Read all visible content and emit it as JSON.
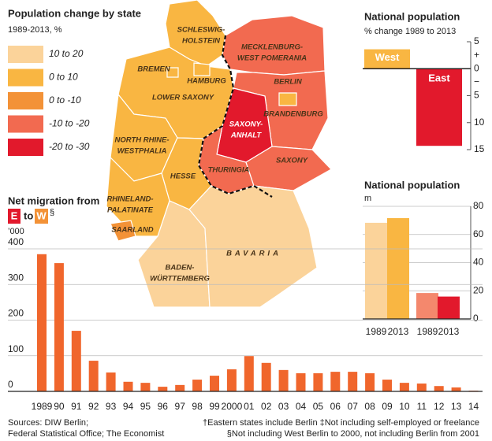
{
  "chart_data": [
    {
      "type": "map",
      "title": "Population change by state",
      "subtitle": "1989-2013, %",
      "legend": [
        {
          "label": "10 to 20",
          "color": "#fbd39a"
        },
        {
          "label": "0 to 10",
          "color": "#f9b642"
        },
        {
          "label": "0 to -10",
          "color": "#f39237"
        },
        {
          "label": "-10 to -20",
          "color": "#f26a50"
        },
        {
          "label": "-20 to -30",
          "color": "#e2192c"
        }
      ],
      "regions": [
        {
          "name": [
            "SCHLESWIG-",
            "HOLSTEIN"
          ],
          "color": "#f9b642"
        },
        {
          "name": [
            "MECKLENBURG-",
            "WEST POMERANIA"
          ],
          "color": "#f26a50"
        },
        {
          "name": [
            "LOWER SAXONY"
          ],
          "color": "#f9b642"
        },
        {
          "name": [
            "HAMBURG"
          ],
          "color": "#f9b642"
        },
        {
          "name": [
            "BREMEN"
          ],
          "color": "#f9b642"
        },
        {
          "name": [
            "BRANDENBURG"
          ],
          "color": "#f26a50"
        },
        {
          "name": [
            "BERLIN"
          ],
          "color": "#f9b642"
        },
        {
          "name": [
            "SAXONY-",
            "ANHALT"
          ],
          "color": "#e2192c"
        },
        {
          "name": [
            "NORTH RHINE-",
            "WESTPHALIA"
          ],
          "color": "#f9b642"
        },
        {
          "name": [
            "HESSE"
          ],
          "color": "#f9b642"
        },
        {
          "name": [
            "THURINGIA"
          ],
          "color": "#f26a50"
        },
        {
          "name": [
            "SAXONY"
          ],
          "color": "#f26a50"
        },
        {
          "name": [
            "RHINELAND-",
            "PALATINATE"
          ],
          "color": "#f9b642"
        },
        {
          "name": [
            "SAARLAND"
          ],
          "color": "#f39237"
        },
        {
          "name": [
            "BADEN-",
            "WÜRTTEMBERG"
          ],
          "color": "#fbd39a"
        },
        {
          "name": [
            "BAVARIA"
          ],
          "color": "#fbd39a"
        }
      ]
    },
    {
      "type": "bar",
      "title": "National population",
      "subtitle": "% change 1989 to 2013",
      "categories": [
        "West",
        "East"
      ],
      "values": [
        3.6,
        -14.3
      ],
      "colors": [
        "#f9b642",
        "#e2192c"
      ],
      "ylim": [
        -15,
        5
      ],
      "yticks": [
        5,
        0,
        {
          "value": -5,
          "label": "5"
        },
        {
          "value": -10,
          "label": "10"
        },
        {
          "value": -15,
          "label": "15"
        }
      ],
      "annotations": [
        "+",
        "−"
      ]
    },
    {
      "type": "bar",
      "title": "National population",
      "subtitle": "m",
      "categories": [
        "1989",
        "2013",
        "1989",
        "2013"
      ],
      "values": [
        68.3,
        71.6,
        18.4,
        15.9
      ],
      "colors": [
        "#fbd39a",
        "#f9b642",
        "#f4886d",
        "#e2192c"
      ],
      "ylim": [
        0,
        80
      ],
      "yticks": [
        0,
        20,
        40,
        60,
        80
      ],
      "grid": true
    },
    {
      "type": "bar",
      "title": "Net migration from",
      "from_label": "E",
      "to_text": "to",
      "to_label": "W",
      "footnote_mark": "§",
      "ylabel": "’000",
      "categories": [
        "1989",
        "90",
        "91",
        "92",
        "93",
        "94",
        "95",
        "96",
        "97",
        "98",
        "99",
        "2000",
        "01",
        "02",
        "03",
        "04",
        "05",
        "06",
        "07",
        "08",
        "09",
        "10",
        "11",
        "12",
        "13",
        "14"
      ],
      "values": [
        385,
        360,
        170,
        86,
        53,
        27,
        24,
        13,
        18,
        33,
        44,
        62,
        99,
        80,
        60,
        51,
        51,
        55,
        55,
        51,
        33,
        24,
        22,
        15,
        11,
        2
      ],
      "color": "#f0662c",
      "ylim": [
        0,
        400
      ],
      "yticks": [
        0,
        100,
        200,
        300,
        400
      ],
      "grid": true
    }
  ],
  "footer": {
    "sources": [
      "Sources: DIW Berlin;",
      "Federal Statistical Office; The Economist"
    ],
    "notes": [
      "†Eastern states include Berlin   ‡Not including self-employed or freelance",
      "§Not including West Berlin to 2000, not including Berlin from 2001"
    ]
  }
}
